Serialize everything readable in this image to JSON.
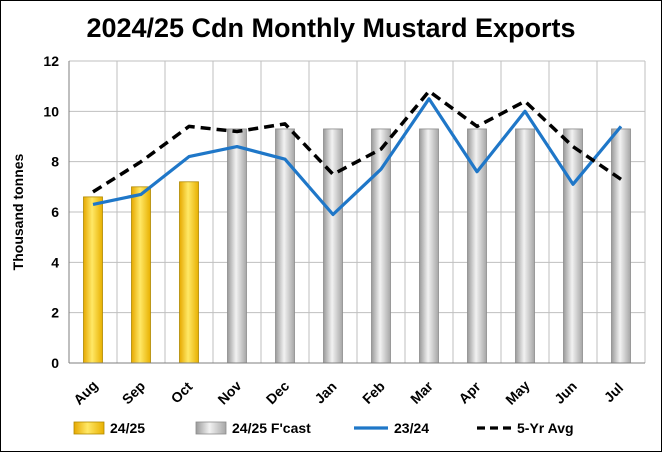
{
  "chart_data": {
    "type": "bar",
    "title": "2024/25 Cdn Monthly Mustard Exports",
    "xlabel": "",
    "ylabel": "Thousand tonnes",
    "ylim": [
      0,
      12
    ],
    "yticks": [
      0,
      2,
      4,
      6,
      8,
      10,
      12
    ],
    "grid": true,
    "legend_position": "bottom",
    "categories": [
      "Aug",
      "Sep",
      "Oct",
      "Nov",
      "Dec",
      "Jan",
      "Feb",
      "Mar",
      "Apr",
      "May",
      "Jun",
      "Jul"
    ],
    "series": [
      {
        "name": "24/25",
        "type": "bar",
        "color": "#FFD700",
        "values": [
          6.6,
          7.0,
          7.2,
          null,
          null,
          null,
          null,
          null,
          null,
          null,
          null,
          null
        ]
      },
      {
        "name": "24/25 F'cast",
        "type": "bar",
        "color": "#C8C8C8",
        "values": [
          null,
          null,
          null,
          9.3,
          9.3,
          9.3,
          9.3,
          9.3,
          9.3,
          9.3,
          9.3,
          9.3
        ]
      },
      {
        "name": "23/24",
        "type": "line",
        "color": "#1F77C8",
        "values": [
          6.3,
          6.7,
          8.2,
          8.6,
          8.1,
          5.9,
          7.7,
          10.5,
          7.6,
          10.0,
          7.1,
          9.4
        ]
      },
      {
        "name": "5-Yr Avg",
        "type": "line",
        "color": "#000000",
        "dashed": true,
        "values": [
          6.8,
          8.0,
          9.4,
          9.2,
          9.5,
          7.5,
          8.5,
          10.8,
          9.4,
          10.4,
          8.6,
          7.3
        ]
      }
    ]
  }
}
